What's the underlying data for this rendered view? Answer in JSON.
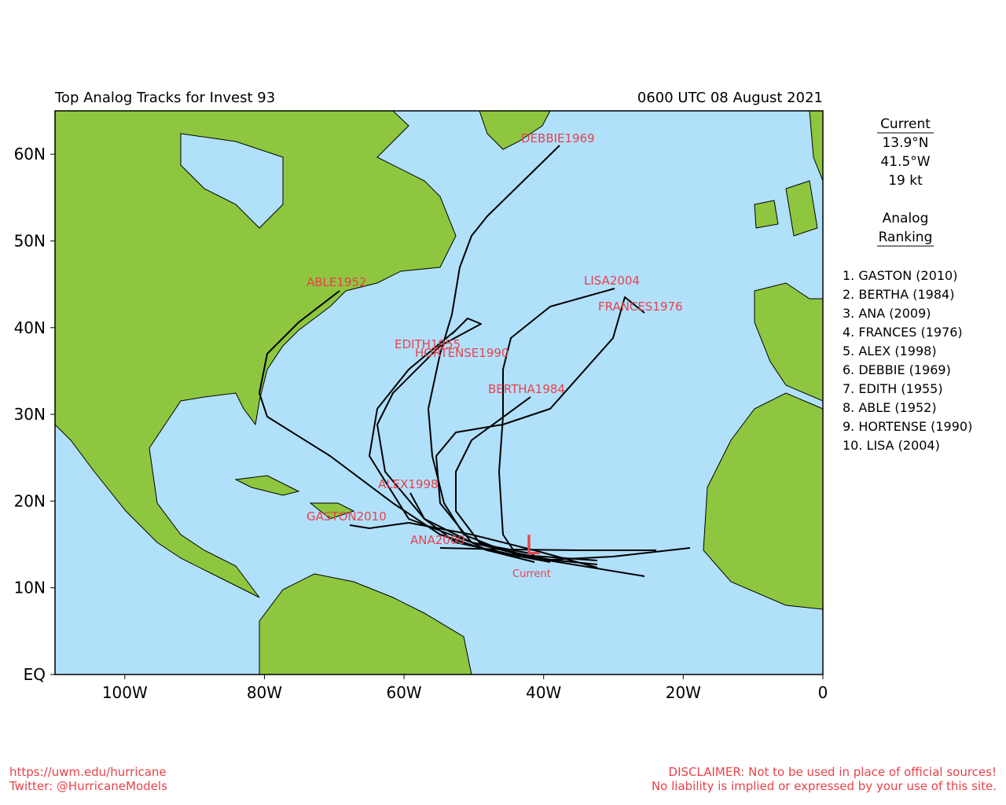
{
  "map": {
    "title": "Top Analog Tracks for Invest 93",
    "time": "0600 UTC 08 August 2021",
    "xlim": [
      -110,
      0
    ],
    "ylim": [
      0,
      65
    ],
    "xticks": [
      {
        "value": -100,
        "label": "100W"
      },
      {
        "value": -80,
        "label": "80W"
      },
      {
        "value": -60,
        "label": "60W"
      },
      {
        "value": -40,
        "label": "40W"
      },
      {
        "value": -20,
        "label": "20W"
      },
      0
    ],
    "yticks": [
      {
        "value": 0,
        "label": "EQ"
      },
      {
        "value": 10,
        "label": "10N"
      },
      {
        "value": 20,
        "label": "20N"
      },
      {
        "value": 30,
        "label": "30N"
      },
      {
        "value": 40,
        "label": "40N"
      },
      {
        "value": 50,
        "label": "50N"
      },
      {
        "value": 60,
        "label": "60N"
      }
    ],
    "storm_labels": [
      "DEBBIE1969",
      "ABLE1952",
      "LISA2004",
      "FRANCES1976",
      "EDITH1955",
      "HORTENSE1990",
      "BERTHA1984",
      "ALEX1998",
      "GASTON2010",
      "ANA2009"
    ],
    "current_marker": "L",
    "current_label": "Current"
  },
  "sidebar": {
    "current_heading": "Current",
    "lat": "13.9°N",
    "lon": "41.5°W",
    "speed": "19 kt",
    "ranking_heading": [
      "Analog",
      "Ranking"
    ],
    "ranking": [
      "1.  GASTON (2010)",
      "2.  BERTHA (1984)",
      "3.  ANA (2009)",
      "4.  FRANCES (1976)",
      "5.  ALEX (1998)",
      "6.  DEBBIE (1969)",
      "7.  EDITH (1955)",
      "8.  ABLE (1952)",
      "9.  HORTENSE (1990)",
      "10. LISA (2004)"
    ]
  },
  "footer": {
    "url": "https://uwm.edu/hurricane",
    "twitter": "Twitter: @HurricaneModels",
    "disclaimer": "DISCLAIMER: Not to be used in place of official sources!",
    "liability": "No liability is implied or expressed by your use of this site."
  }
}
